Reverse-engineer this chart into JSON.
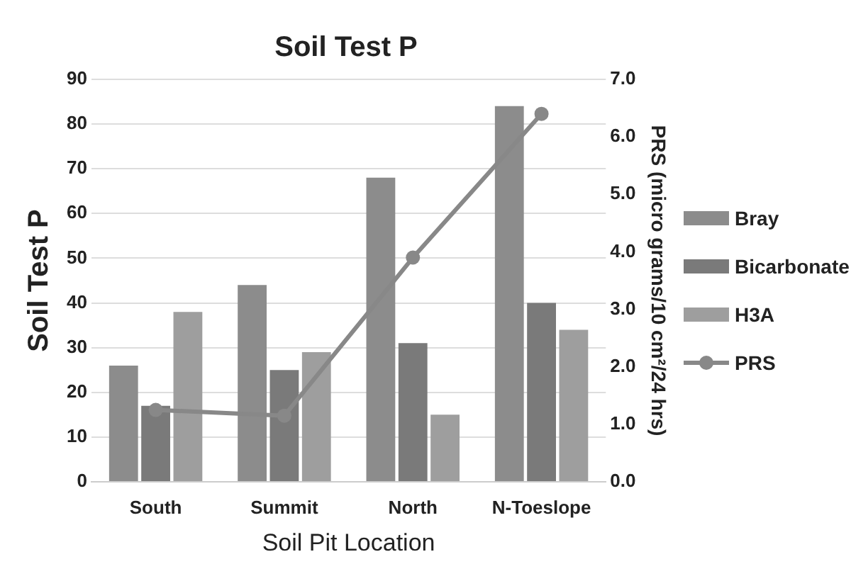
{
  "chart_data": {
    "type": "bar",
    "title": "Soil Test P",
    "xlabel": "Soil Pit Location",
    "ylabel": "Soil Test P",
    "y2label": "PRS (micro grams/10 cm²/24 hrs)",
    "categories": [
      "South",
      "Summit",
      "North",
      "N-Toeslope"
    ],
    "series": [
      {
        "name": "Bray",
        "color": "#8c8c8c",
        "values": [
          26,
          44,
          68,
          84
        ]
      },
      {
        "name": "Bicarbonate",
        "color": "#7a7a7a",
        "values": [
          17,
          25,
          31,
          40
        ]
      },
      {
        "name": "H3A",
        "color": "#9e9e9e",
        "values": [
          38,
          29,
          15,
          34
        ]
      },
      {
        "name": "PRS",
        "type": "line",
        "axis": "y2",
        "color": "#888888",
        "values": [
          1.25,
          1.15,
          3.9,
          6.4
        ]
      }
    ],
    "ylim": [
      0,
      90
    ],
    "yticks": [
      0,
      10,
      20,
      30,
      40,
      50,
      60,
      70,
      80,
      90
    ],
    "y2lim": [
      0,
      7
    ],
    "y2ticks": [
      {
        "value": 0,
        "label": "0.0"
      },
      {
        "value": 1,
        "label": "1.0"
      },
      {
        "value": 2,
        "label": "2.0"
      },
      {
        "value": 3,
        "label": "3.0"
      },
      {
        "value": 4,
        "label": "4.0"
      },
      {
        "value": 5,
        "label": "5.0"
      },
      {
        "value": 6,
        "label": "6.0"
      },
      {
        "value": 7,
        "label": "7.0"
      }
    ],
    "grid": "y",
    "legend": "right",
    "marker": "circle"
  }
}
